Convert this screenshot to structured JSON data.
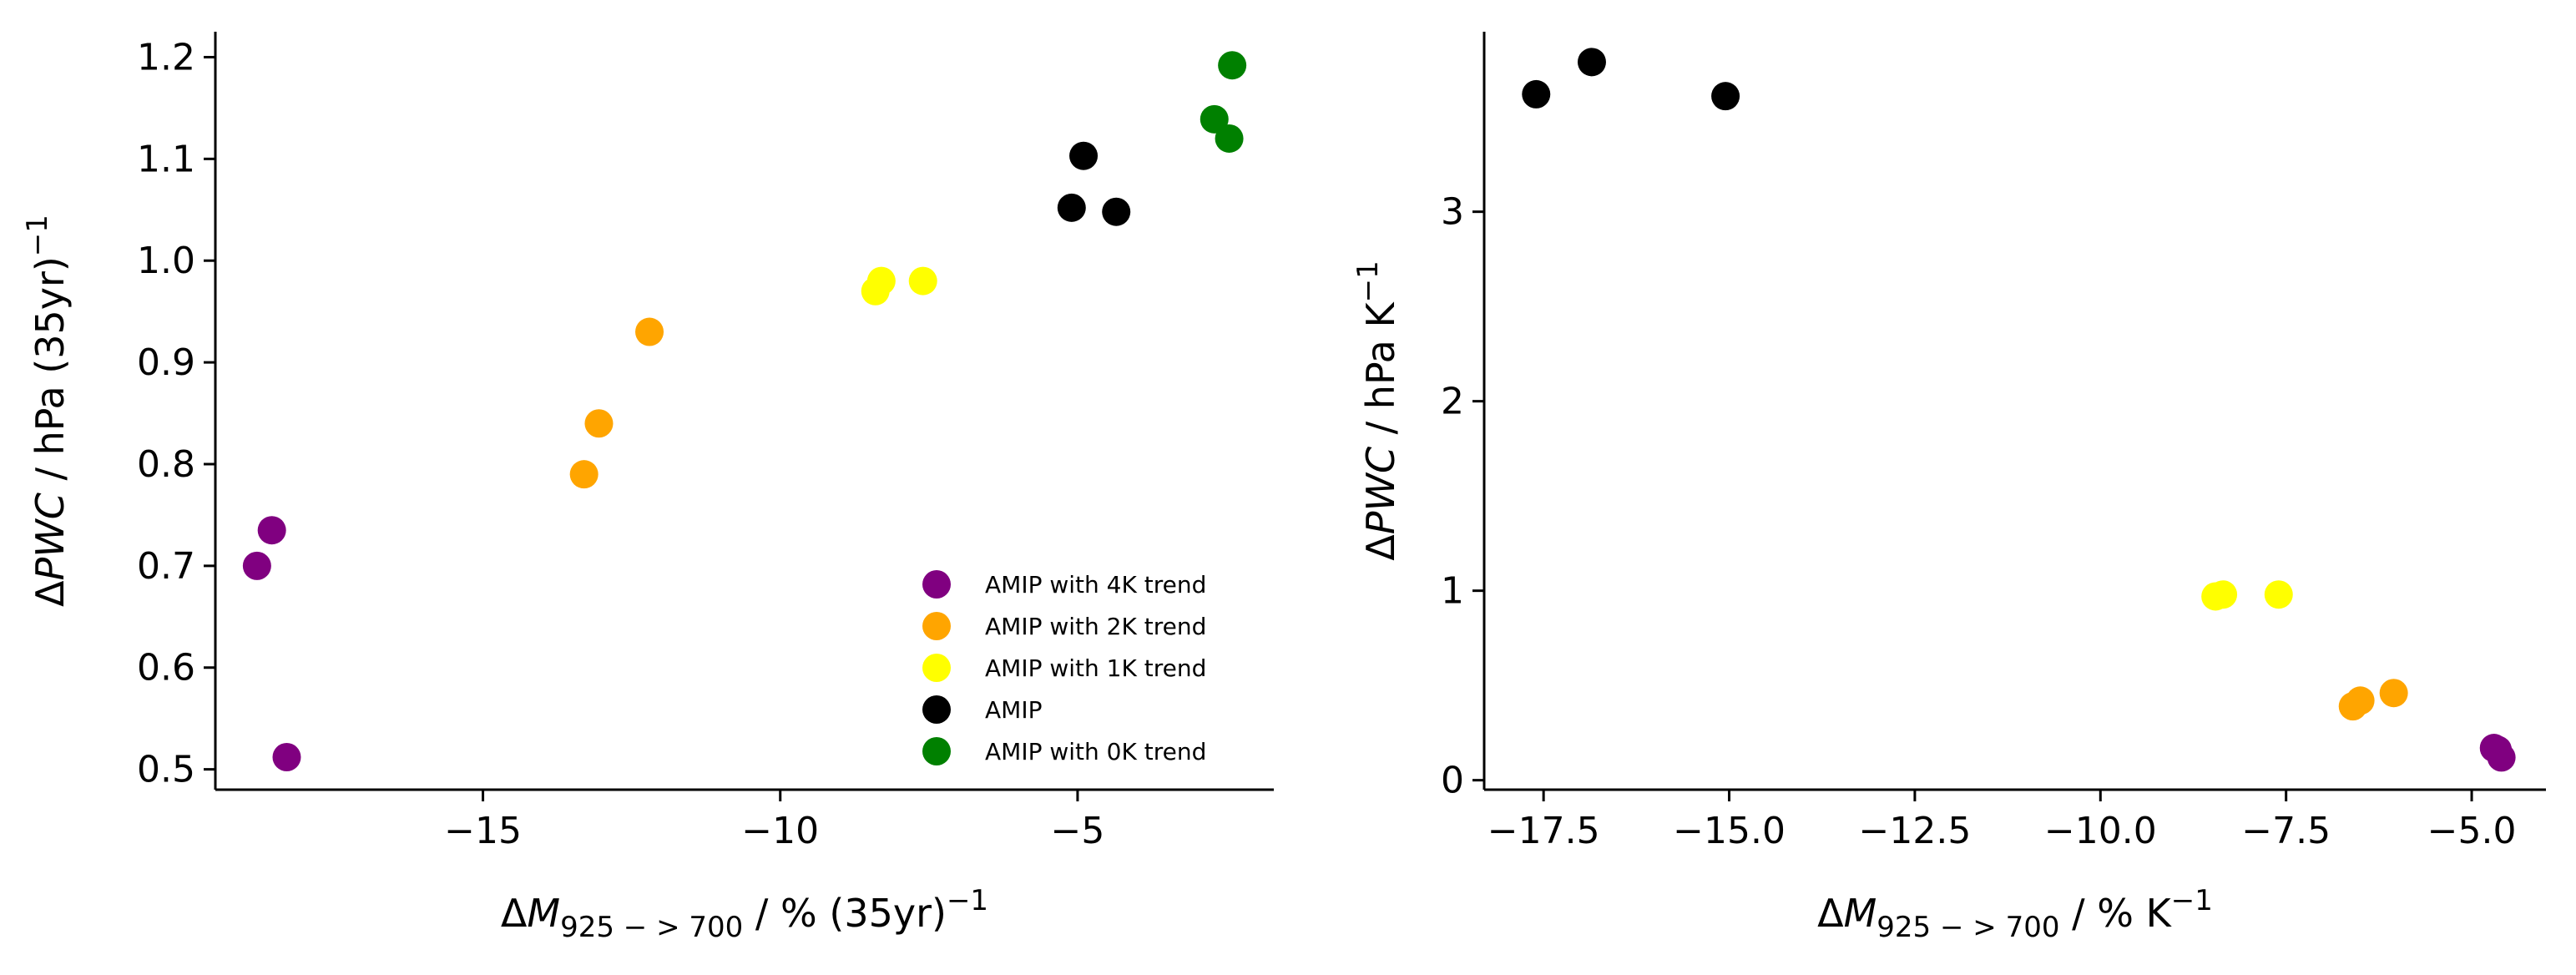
{
  "chart_data": [
    {
      "type": "scatter",
      "xlabel": "ΔM925−>700 / % (35yr)−1",
      "ylabel": "ΔPWC / hPa (35yr)−1",
      "xlim": [
        -19.5,
        -1.7
      ],
      "ylim": [
        0.48,
        1.225
      ],
      "xticks": [
        -15,
        -10,
        -5
      ],
      "xtick_labels": [
        "−15",
        "−10",
        "−5"
      ],
      "yticks": [
        0.5,
        0.6,
        0.7,
        0.8,
        0.9,
        1.0,
        1.1,
        1.2
      ],
      "ytick_labels": [
        "0.5",
        "0.6",
        "0.7",
        "0.8",
        "0.9",
        "1.0",
        "1.1",
        "1.2"
      ],
      "grid": false,
      "legend_position": "bottom-right",
      "series": [
        {
          "name": "AMIP with 4K trend",
          "color": "#800080",
          "points": [
            [
              -18.8,
              0.7
            ],
            [
              -18.55,
              0.735
            ],
            [
              -18.3,
              0.512
            ]
          ]
        },
        {
          "name": "AMIP with 2K trend",
          "color": "#FFA500",
          "points": [
            [
              -13.3,
              0.79
            ],
            [
              -13.05,
              0.84
            ],
            [
              -12.2,
              0.93
            ]
          ]
        },
        {
          "name": "AMIP with 1K trend",
          "color": "#FFFF00",
          "points": [
            [
              -8.4,
              0.97
            ],
            [
              -8.3,
              0.98
            ],
            [
              -7.6,
              0.98
            ]
          ]
        },
        {
          "name": "AMIP",
          "color": "#000000",
          "points": [
            [
              -5.1,
              1.052
            ],
            [
              -4.9,
              1.103
            ],
            [
              -4.35,
              1.048
            ]
          ]
        },
        {
          "name": "AMIP with 0K trend",
          "color": "#008000",
          "points": [
            [
              -2.7,
              1.139
            ],
            [
              -2.45,
              1.12
            ],
            [
              -2.4,
              1.192
            ]
          ]
        }
      ]
    },
    {
      "type": "scatter",
      "xlabel": "ΔM925−>700 / % K−1",
      "ylabel": "ΔPWC / hPa K−1",
      "xlim": [
        -18.3,
        -4.0
      ],
      "ylim": [
        -0.05,
        3.95
      ],
      "xticks": [
        -17.5,
        -15.0,
        -12.5,
        -10.0,
        -7.5,
        -5.0
      ],
      "xtick_labels": [
        "−17.5",
        "−15.0",
        "−12.5",
        "−10.0",
        "−7.5",
        "−5.0"
      ],
      "yticks": [
        0,
        1,
        2,
        3
      ],
      "ytick_labels": [
        "0",
        "1",
        "2",
        "3"
      ],
      "grid": false,
      "series": [
        {
          "color": "#800080",
          "points": [
            [
              -4.7,
              0.17
            ],
            [
              -4.6,
              0.12
            ],
            [
              -4.65,
              0.16
            ]
          ]
        },
        {
          "color": "#FFA500",
          "points": [
            [
              -6.6,
              0.39
            ],
            [
              -6.5,
              0.42
            ],
            [
              -6.05,
              0.46
            ]
          ]
        },
        {
          "color": "#FFFF00",
          "points": [
            [
              -8.45,
              0.97
            ],
            [
              -8.35,
              0.98
            ],
            [
              -7.6,
              0.98
            ]
          ]
        },
        {
          "color": "#000000",
          "points": [
            [
              -17.6,
              3.62
            ],
            [
              -16.85,
              3.79
            ],
            [
              -15.05,
              3.61
            ]
          ]
        }
      ]
    }
  ]
}
